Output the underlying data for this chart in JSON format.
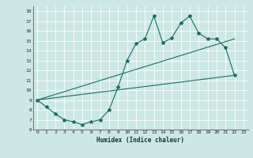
{
  "bg_color": "#cce8e4",
  "grid_color": "#ffffff",
  "line_color": "#1a6b60",
  "xlabel": "Humidex (Indice chaleur)",
  "xlim": [
    -0.5,
    23.5
  ],
  "ylim": [
    6,
    18.5
  ],
  "yticks": [
    6,
    7,
    8,
    9,
    10,
    11,
    12,
    13,
    14,
    15,
    16,
    17,
    18
  ],
  "xticks": [
    0,
    1,
    2,
    3,
    4,
    5,
    6,
    7,
    8,
    9,
    10,
    11,
    12,
    13,
    14,
    15,
    16,
    17,
    18,
    19,
    20,
    21,
    22,
    23
  ],
  "line1_x": [
    0,
    1,
    2,
    3,
    4,
    5,
    6,
    7,
    8,
    9,
    10,
    11,
    12,
    13,
    14,
    15,
    16,
    17,
    18,
    19,
    20,
    21,
    22
  ],
  "line1_y": [
    9.0,
    8.3,
    7.6,
    7.0,
    6.8,
    6.5,
    6.8,
    7.0,
    8.0,
    10.3,
    13.0,
    14.7,
    15.2,
    17.5,
    14.8,
    15.3,
    16.8,
    17.5,
    15.8,
    15.2,
    15.2,
    14.3,
    11.5
  ],
  "line2_x": [
    0,
    22
  ],
  "line2_y": [
    9.0,
    11.5
  ],
  "line3_x": [
    0,
    22
  ],
  "line3_y": [
    9.0,
    15.2
  ],
  "marker": "*",
  "markersize": 3,
  "linewidth": 0.8,
  "xlabel_fontsize": 5.5,
  "tick_fontsize": 4.5
}
